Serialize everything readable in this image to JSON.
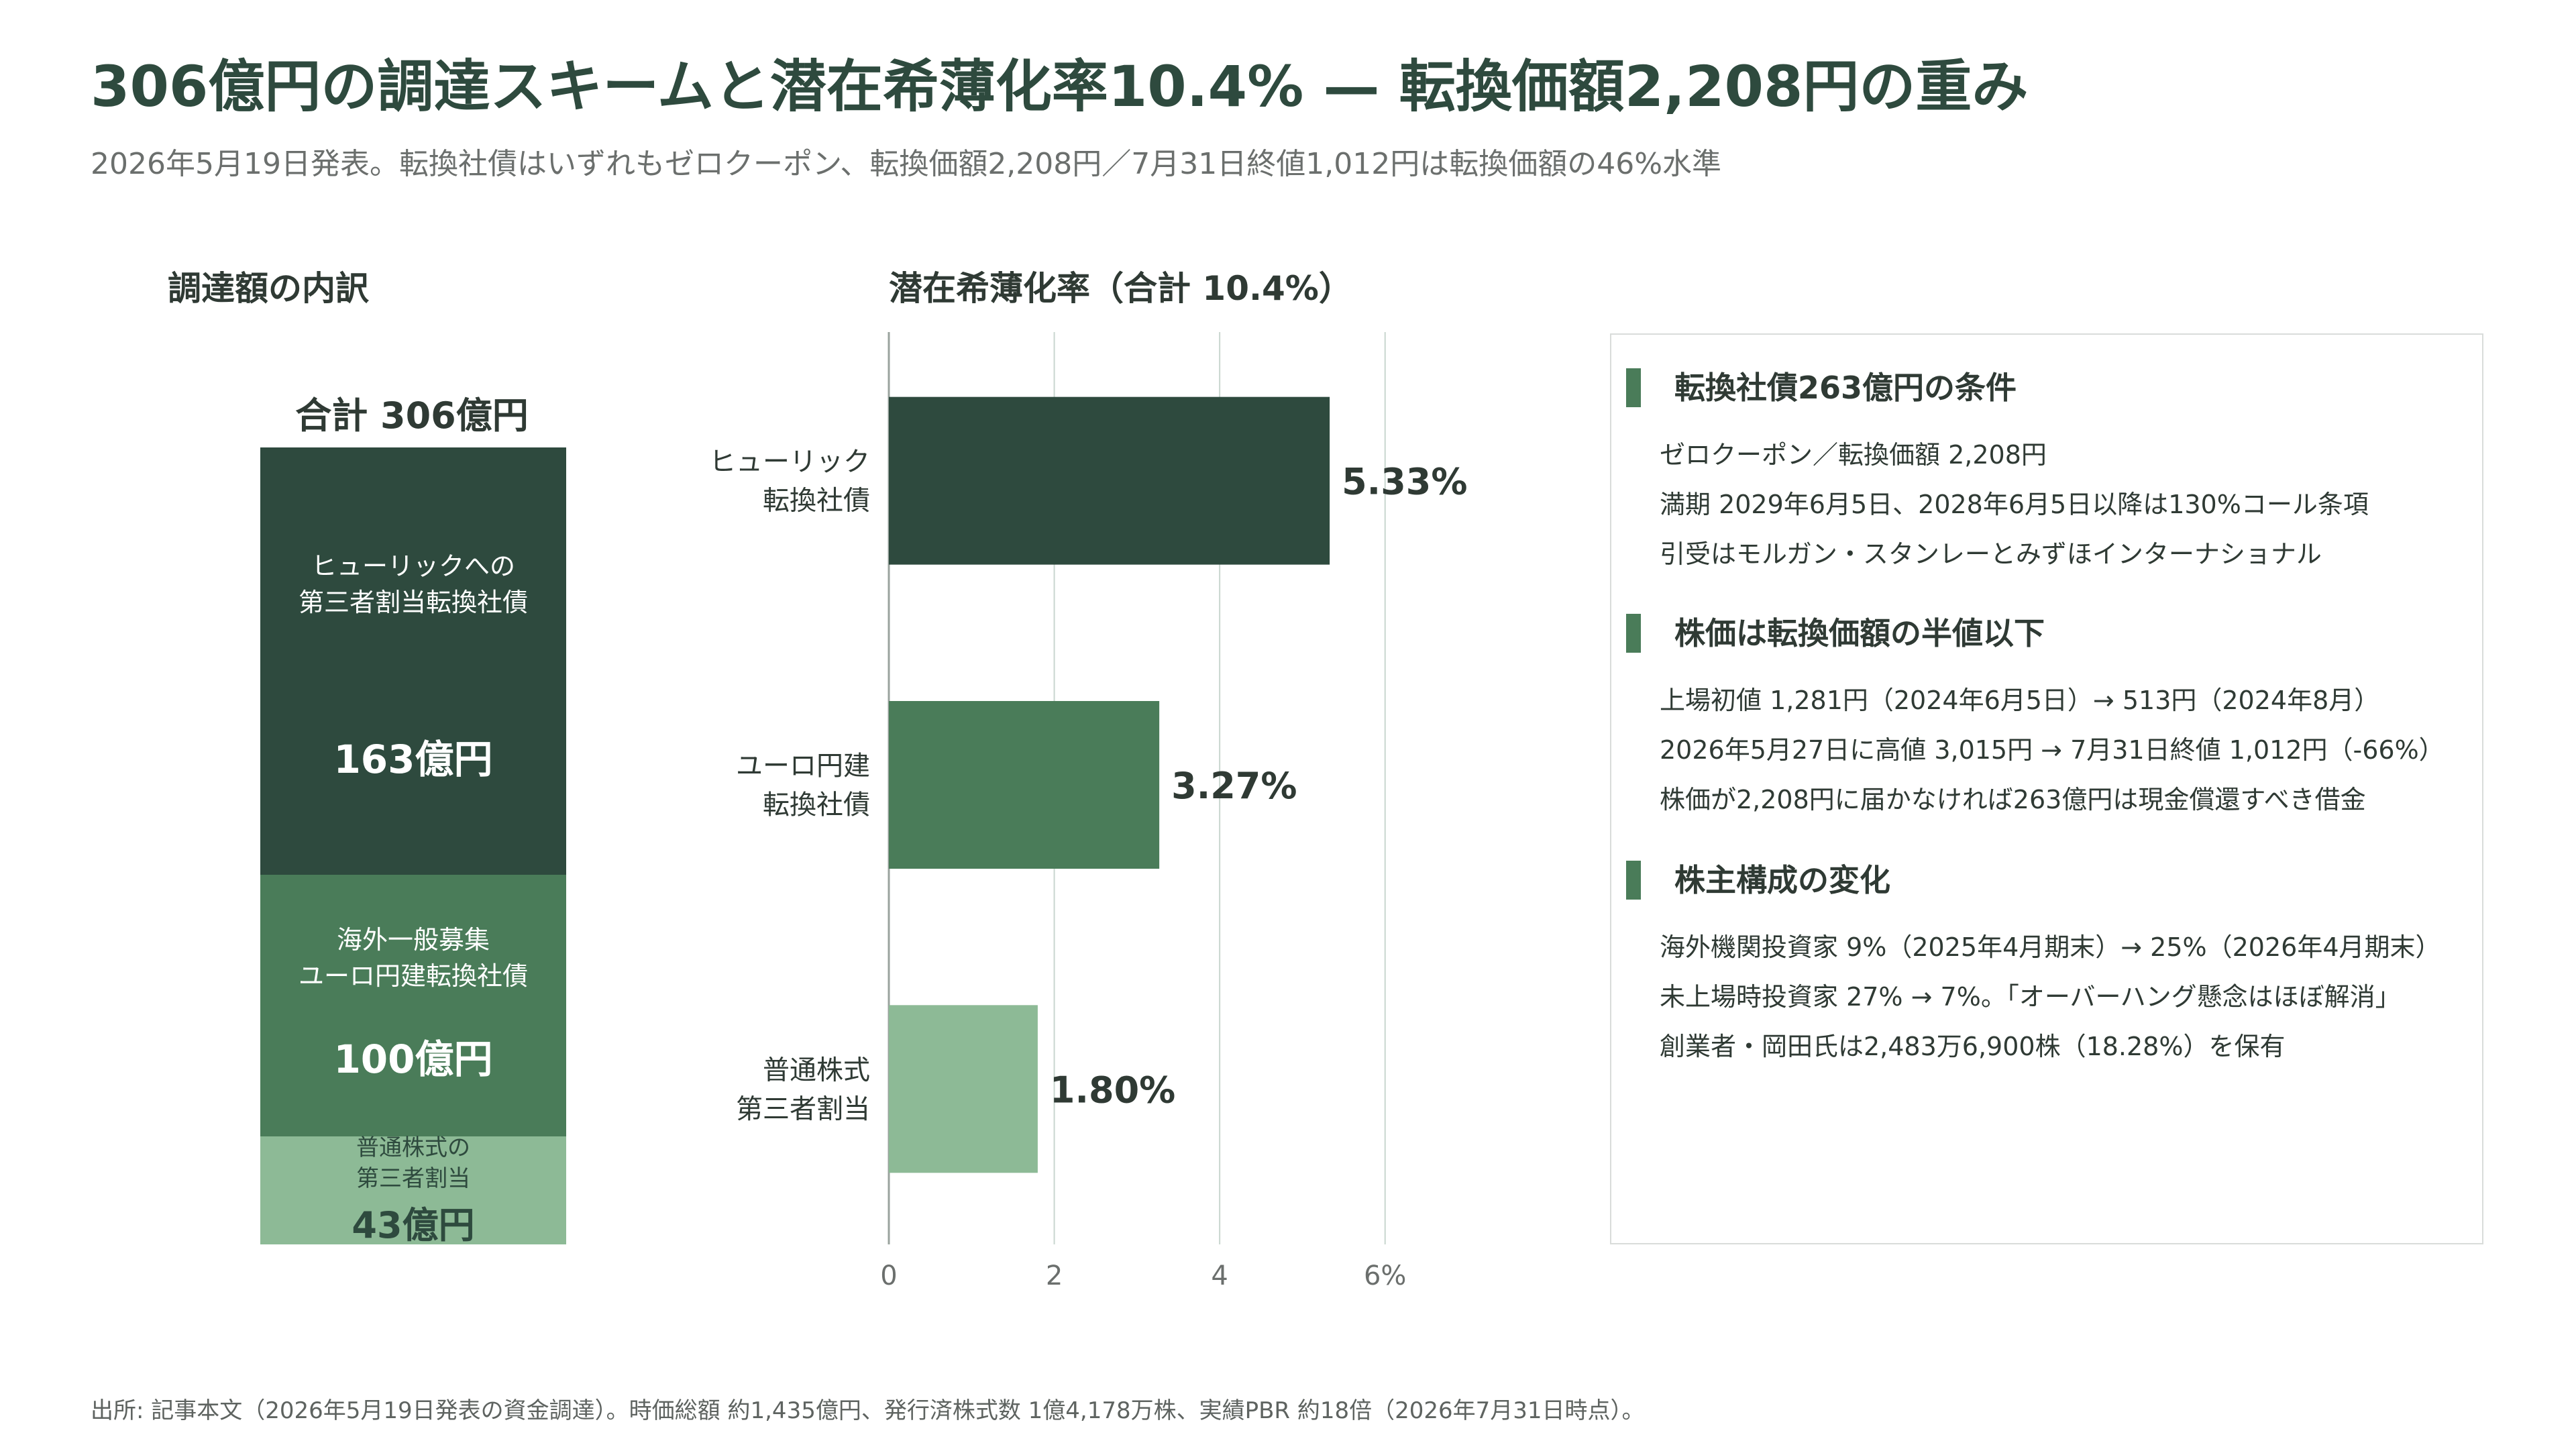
{
  "title": "306億円の調達スキームと潜在希薄化率10.4% — 転換価額2,208円の重み",
  "subtitle": "2026年5月19日発表。転換社債はいずれもゼロクーポン、転換価額2,208円／7月31日終値1,012円は転換価額の46%水準",
  "left_section_title": "調達額の内訳",
  "right_section_title": "潜在希薄化率（合計 10.4%）",
  "stack": {
    "total": "合計 306億円",
    "segments": [
      {
        "label1": "ヒューリックへの",
        "label2": "第三者割当転換社債",
        "value_label": "163億円",
        "value": 163,
        "color": "#2e4a3e"
      },
      {
        "label1": "海外一般募集",
        "label2": "ユーロ円建転換社債",
        "value_label": "100億円",
        "value": 100,
        "color": "#4a7c59"
      },
      {
        "label1": "普通株式の",
        "label2": "第三者割当",
        "value_label": "43億円",
        "value": 43,
        "color": "#8dba96"
      }
    ]
  },
  "chart_data": {
    "type": "bar",
    "orientation": "horizontal",
    "title": "潜在希薄化率（合計 10.4%）",
    "categories": [
      [
        "ヒューリック",
        "転換社債"
      ],
      [
        "ユーロ円建",
        "転換社債"
      ],
      [
        "普通株式",
        "第三者割当"
      ]
    ],
    "values": [
      5.33,
      3.27,
      1.8
    ],
    "value_labels": [
      "5.33%",
      "3.27%",
      "1.80%"
    ],
    "colors": [
      "#2e4a3e",
      "#4a7c59",
      "#8dba96"
    ],
    "xlim": [
      0,
      7
    ],
    "xticks": [
      0,
      2,
      4,
      6
    ],
    "xtick_labels": [
      "0",
      "2",
      "4",
      "6%"
    ],
    "grid": true
  },
  "notes": [
    {
      "heading": "転換社債263億円の条件",
      "lines": [
        "ゼロクーポン／転換価額 2,208円",
        "満期 2029年6月5日、2028年6月5日以降は130%コール条項",
        "引受はモルガン・スタンレーとみずほインターナショナル"
      ]
    },
    {
      "heading": "株価は転換価額の半値以下",
      "lines": [
        "上場初値 1,281円（2024年6月5日）→ 513円（2024年8月）",
        "2026年5月27日に高値 3,015円 → 7月31日終値 1,012円（-66%）",
        "株価が2,208円に届かなければ263億円は現金償還すべき借金"
      ]
    },
    {
      "heading": "株主構成の変化",
      "lines": [
        "海外機関投資家 9%（2025年4月期末）→ 25%（2026年4月期末）",
        "未上場時投資家 27% → 7%。「オーバーハング懸念はほぼ解消」",
        "創業者・岡田氏は2,483万6,900株（18.28%）を保有"
      ]
    }
  ],
  "footer": "出所: 記事本文（2026年5月19日発表の資金調達）。時価総額 約1,435億円、発行済株式数 1億4,178万株、実績PBR 約18倍（2026年7月31日時点）。"
}
